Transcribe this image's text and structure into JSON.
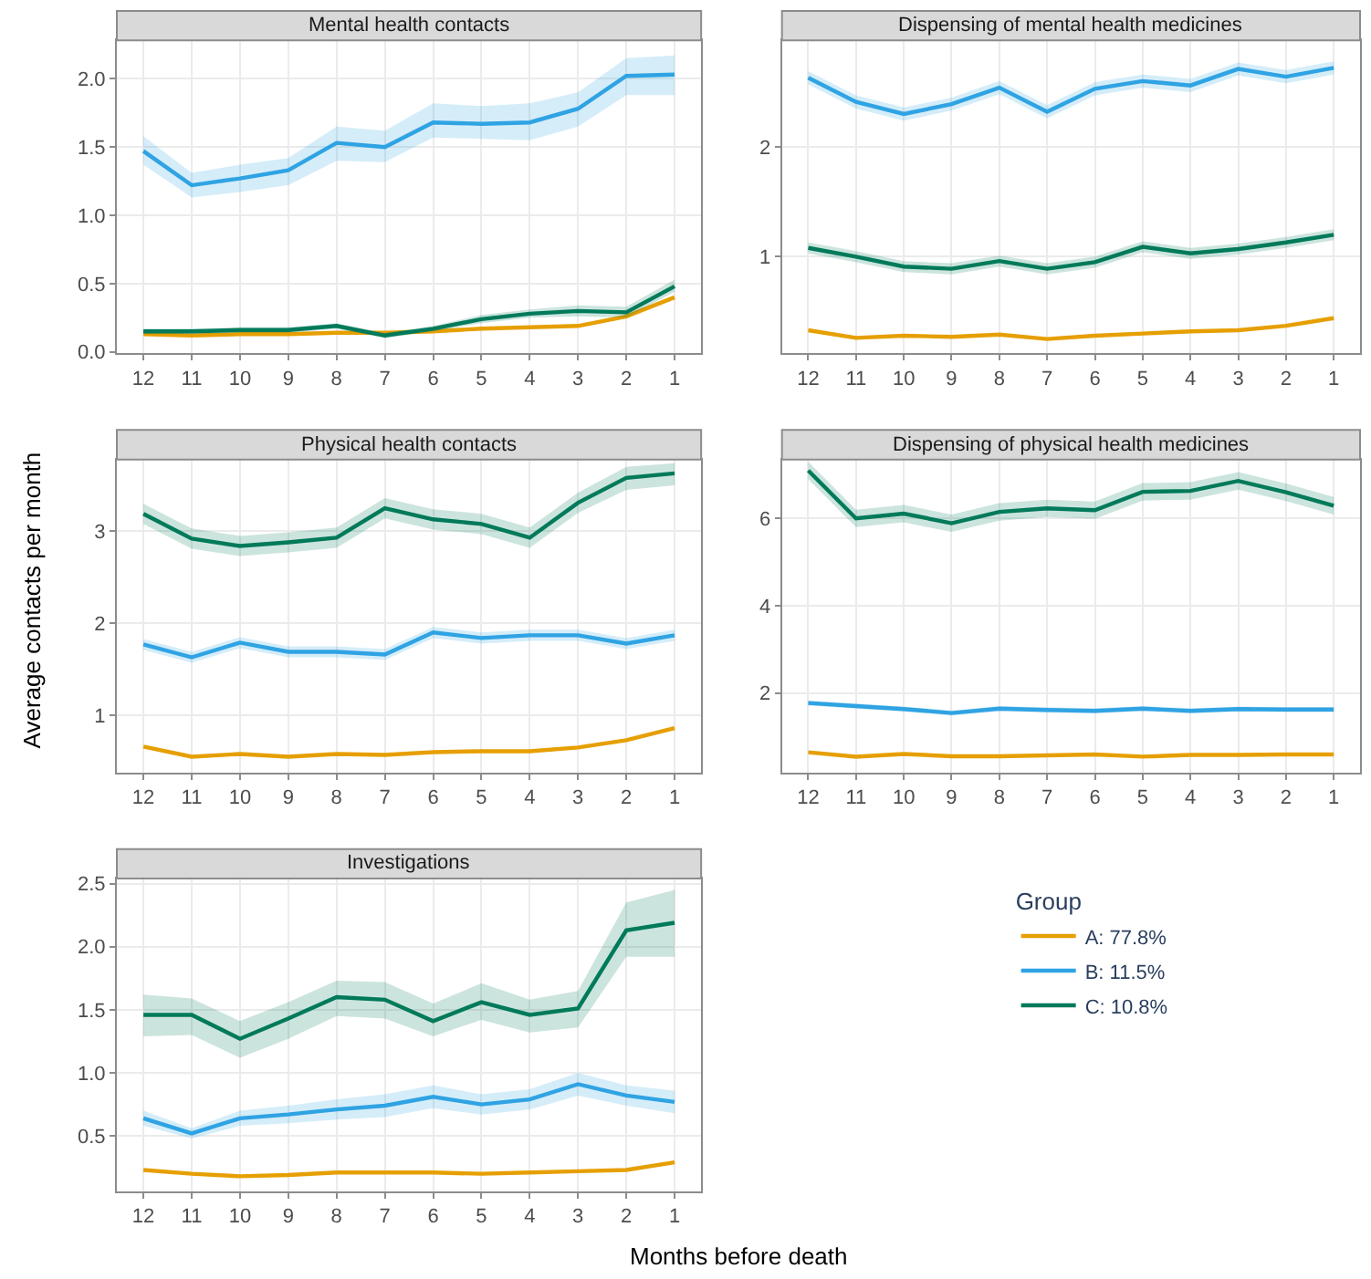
{
  "chart_data": [
    {
      "type": "line",
      "title": "Mental health contacts",
      "categories": [
        "12",
        "11",
        "10",
        "9",
        "8",
        "7",
        "6",
        "5",
        "4",
        "3",
        "2",
        "1"
      ],
      "ylim": [
        -0.01,
        2.28
      ],
      "yticks": [
        {
          "value": 0,
          "label": "0.0"
        },
        {
          "value": 0.5,
          "label": "0.5"
        },
        {
          "value": 1,
          "label": "1.0"
        },
        {
          "value": 1.5,
          "label": "1.5"
        },
        {
          "value": 2,
          "label": "2.0"
        }
      ],
      "grid": true,
      "series": [
        {
          "color": "#e69f00",
          "values": [
            0.13,
            0.12,
            0.13,
            0.13,
            0.14,
            0.14,
            0.15,
            0.17,
            0.18,
            0.19,
            0.26,
            0.4
          ]
        },
        {
          "color": "#2fa3e3",
          "values": [
            1.47,
            1.22,
            1.27,
            1.33,
            1.53,
            1.5,
            1.68,
            1.67,
            1.68,
            1.78,
            2.02,
            2.03
          ],
          "lower": [
            1.37,
            1.13,
            1.17,
            1.22,
            1.4,
            1.39,
            1.57,
            1.56,
            1.55,
            1.65,
            1.88,
            1.88
          ],
          "upper": [
            1.58,
            1.31,
            1.37,
            1.42,
            1.65,
            1.62,
            1.82,
            1.8,
            1.82,
            1.9,
            2.15,
            2.17
          ]
        },
        {
          "color": "#007a5a",
          "values": [
            0.15,
            0.15,
            0.16,
            0.16,
            0.19,
            0.12,
            0.17,
            0.24,
            0.28,
            0.3,
            0.29,
            0.48
          ],
          "lower": [
            0.13,
            0.13,
            0.14,
            0.14,
            0.17,
            0.1,
            0.15,
            0.21,
            0.25,
            0.26,
            0.25,
            0.44
          ],
          "upper": [
            0.17,
            0.17,
            0.18,
            0.18,
            0.21,
            0.14,
            0.19,
            0.27,
            0.31,
            0.34,
            0.33,
            0.53
          ]
        }
      ]
    },
    {
      "type": "line",
      "title": "Dispensing of mental health medicines",
      "categories": [
        "12",
        "11",
        "10",
        "9",
        "8",
        "7",
        "6",
        "5",
        "4",
        "3",
        "2",
        "1"
      ],
      "ylim": [
        0.12,
        2.97
      ],
      "yticks": [
        1,
        2
      ],
      "grid": true,
      "series": [
        {
          "color": "#e69f00",
          "values": [
            0.33,
            0.26,
            0.28,
            0.27,
            0.29,
            0.25,
            0.28,
            0.3,
            0.32,
            0.33,
            0.37,
            0.44
          ]
        },
        {
          "color": "#2fa3e3",
          "values": [
            2.63,
            2.41,
            2.3,
            2.39,
            2.54,
            2.32,
            2.53,
            2.6,
            2.56,
            2.71,
            2.64,
            2.72
          ],
          "lower": [
            2.57,
            2.35,
            2.24,
            2.33,
            2.48,
            2.26,
            2.47,
            2.54,
            2.5,
            2.65,
            2.58,
            2.66
          ],
          "upper": [
            2.69,
            2.47,
            2.36,
            2.45,
            2.6,
            2.38,
            2.59,
            2.66,
            2.62,
            2.77,
            2.7,
            2.78
          ]
        },
        {
          "color": "#007a5a",
          "values": [
            1.08,
            1.0,
            0.91,
            0.89,
            0.96,
            0.89,
            0.95,
            1.09,
            1.03,
            1.07,
            1.13,
            1.2
          ],
          "lower": [
            1.03,
            0.95,
            0.86,
            0.84,
            0.91,
            0.84,
            0.9,
            1.04,
            0.98,
            1.02,
            1.08,
            1.15
          ],
          "upper": [
            1.13,
            1.05,
            0.96,
            0.94,
            1.01,
            0.94,
            1.0,
            1.14,
            1.08,
            1.12,
            1.18,
            1.25
          ]
        }
      ]
    },
    {
      "type": "line",
      "title": "Physical health contacts",
      "ylabel": "Average contacts per month",
      "categories": [
        "12",
        "11",
        "10",
        "9",
        "8",
        "7",
        "6",
        "5",
        "4",
        "3",
        "2",
        "1"
      ],
      "ylim": [
        0.38,
        3.78
      ],
      "yticks": [
        1,
        2,
        3
      ],
      "grid": true,
      "series": [
        {
          "color": "#e69f00",
          "values": [
            0.66,
            0.55,
            0.58,
            0.55,
            0.58,
            0.57,
            0.6,
            0.61,
            0.61,
            0.65,
            0.73,
            0.86
          ]
        },
        {
          "color": "#2fa3e3",
          "values": [
            1.77,
            1.63,
            1.79,
            1.69,
            1.69,
            1.66,
            1.9,
            1.84,
            1.87,
            1.87,
            1.78,
            1.87
          ],
          "lower": [
            1.71,
            1.57,
            1.73,
            1.63,
            1.63,
            1.6,
            1.84,
            1.78,
            1.81,
            1.81,
            1.72,
            1.81
          ],
          "upper": [
            1.83,
            1.69,
            1.85,
            1.75,
            1.75,
            1.72,
            1.96,
            1.9,
            1.93,
            1.93,
            1.84,
            1.93
          ]
        },
        {
          "color": "#007a5a",
          "values": [
            3.19,
            2.92,
            2.84,
            2.88,
            2.93,
            3.25,
            3.13,
            3.08,
            2.93,
            3.31,
            3.58,
            3.63
          ],
          "lower": [
            3.08,
            2.81,
            2.73,
            2.77,
            2.82,
            3.14,
            3.02,
            2.97,
            2.82,
            3.2,
            3.45,
            3.5
          ],
          "upper": [
            3.3,
            3.03,
            2.95,
            2.99,
            3.04,
            3.36,
            3.24,
            3.19,
            3.04,
            3.42,
            3.7,
            3.74
          ]
        }
      ]
    },
    {
      "type": "line",
      "title": "Dispensing of physical health medicines",
      "categories": [
        "12",
        "11",
        "10",
        "9",
        "8",
        "7",
        "6",
        "5",
        "4",
        "3",
        "2",
        "1"
      ],
      "ylim": [
        0.18,
        7.35
      ],
      "yticks": [
        2,
        4,
        6
      ],
      "grid": true,
      "series": [
        {
          "color": "#e69f00",
          "values": [
            0.64,
            0.54,
            0.6,
            0.55,
            0.55,
            0.57,
            0.59,
            0.54,
            0.58,
            0.58,
            0.59,
            0.59
          ]
        },
        {
          "color": "#2fa3e3",
          "values": [
            1.77,
            1.7,
            1.63,
            1.54,
            1.64,
            1.61,
            1.59,
            1.64,
            1.59,
            1.63,
            1.62,
            1.62
          ],
          "lower": [
            1.71,
            1.64,
            1.57,
            1.48,
            1.58,
            1.55,
            1.53,
            1.58,
            1.53,
            1.57,
            1.56,
            1.56
          ],
          "upper": [
            1.83,
            1.76,
            1.69,
            1.6,
            1.7,
            1.67,
            1.65,
            1.7,
            1.65,
            1.69,
            1.68,
            1.68
          ]
        },
        {
          "color": "#007a5a",
          "values": [
            7.1,
            6.0,
            6.11,
            5.89,
            6.15,
            6.23,
            6.19,
            6.61,
            6.63,
            6.86,
            6.6,
            6.29
          ],
          "lower": [
            6.9,
            5.8,
            5.91,
            5.69,
            5.95,
            6.03,
            5.99,
            6.41,
            6.43,
            6.66,
            6.4,
            6.09
          ],
          "upper": [
            7.3,
            6.2,
            6.31,
            6.09,
            6.35,
            6.43,
            6.39,
            6.81,
            6.83,
            7.06,
            6.8,
            6.49
          ]
        }
      ]
    },
    {
      "type": "line",
      "title": "Investigations",
      "xlabel": "Months before death",
      "legend_title": "Group",
      "legend": "right",
      "categories": [
        "12",
        "11",
        "10",
        "9",
        "8",
        "7",
        "6",
        "5",
        "4",
        "3",
        "2",
        "1"
      ],
      "ylim": [
        0.06,
        2.54
      ],
      "yticks": [
        0.5,
        {
          "value": 1,
          "label": "1.0"
        },
        1.5,
        {
          "value": 2,
          "label": "2.0"
        },
        2.5
      ],
      "grid": true,
      "series": [
        {
          "name": "A: 77.8%",
          "color": "#e69f00",
          "values": [
            0.23,
            0.2,
            0.18,
            0.19,
            0.21,
            0.21,
            0.21,
            0.2,
            0.21,
            0.22,
            0.23,
            0.29
          ]
        },
        {
          "name": "B: 11.5%",
          "color": "#2fa3e3",
          "values": [
            0.64,
            0.52,
            0.64,
            0.67,
            0.71,
            0.74,
            0.81,
            0.75,
            0.79,
            0.91,
            0.82,
            0.77
          ],
          "lower": [
            0.58,
            0.48,
            0.58,
            0.6,
            0.63,
            0.65,
            0.72,
            0.67,
            0.71,
            0.82,
            0.74,
            0.68
          ],
          "upper": [
            0.7,
            0.56,
            0.7,
            0.74,
            0.79,
            0.83,
            0.9,
            0.83,
            0.87,
            1.0,
            0.9,
            0.86
          ]
        },
        {
          "name": "C: 10.8%",
          "color": "#007a5a",
          "values": [
            1.46,
            1.46,
            1.27,
            1.43,
            1.6,
            1.58,
            1.41,
            1.56,
            1.46,
            1.51,
            2.13,
            2.19
          ],
          "lower": [
            1.29,
            1.3,
            1.12,
            1.27,
            1.45,
            1.43,
            1.29,
            1.42,
            1.32,
            1.36,
            1.92,
            1.92
          ],
          "upper": [
            1.62,
            1.59,
            1.41,
            1.56,
            1.73,
            1.72,
            1.55,
            1.71,
            1.58,
            1.65,
            2.35,
            2.45
          ]
        }
      ]
    }
  ]
}
